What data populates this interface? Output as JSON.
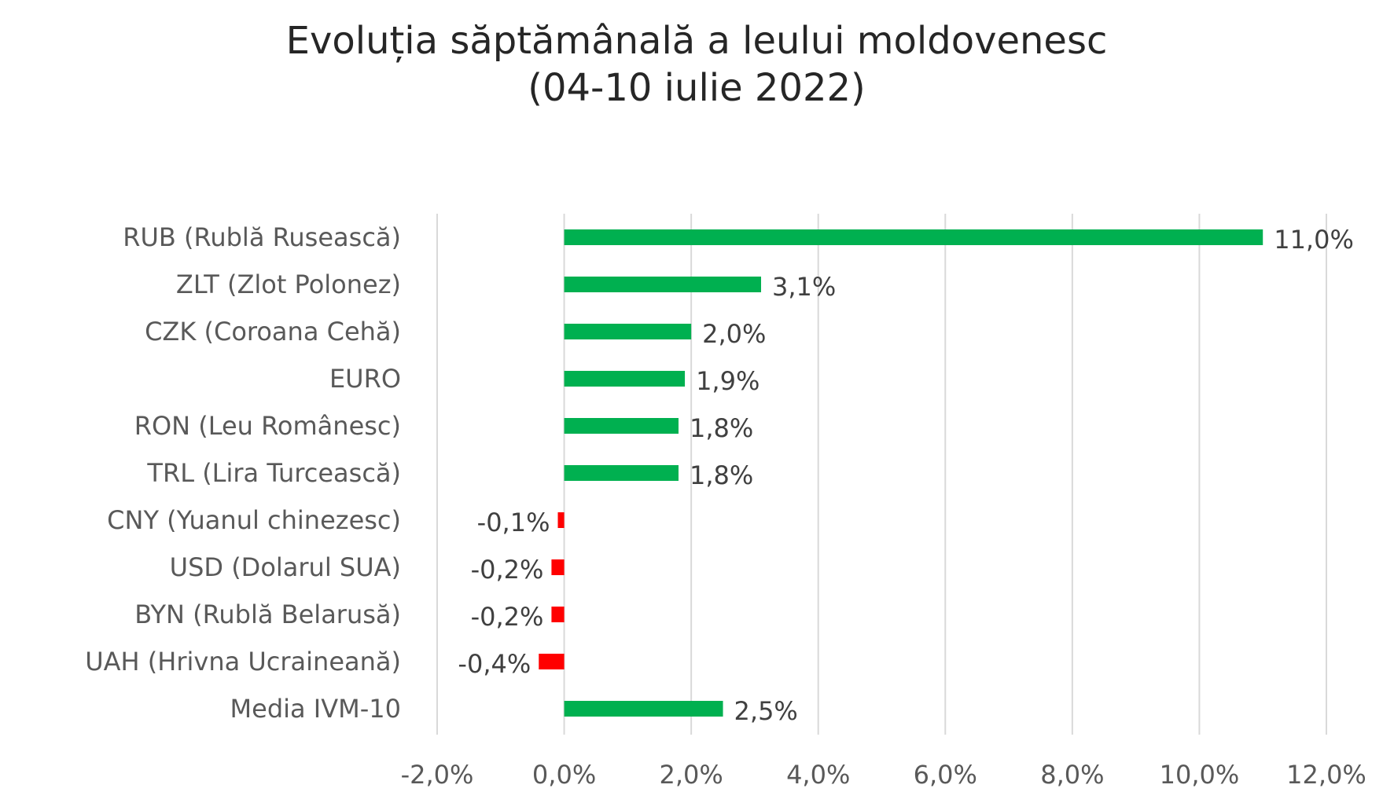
{
  "chart_data": {
    "type": "bar",
    "orientation": "horizontal",
    "title_lines": [
      "Evoluția săptămânală a leului moldovenesc",
      "(04-10 iulie 2022)"
    ],
    "categories": [
      "RUB (Rublă Rusească)",
      "ZLT (Zlot Polonez)",
      "CZK (Coroana Cehă)",
      "EURO",
      "RON (Leu Românesc)",
      "TRL (Lira Turcească)",
      "CNY (Yuanul chinezesc)",
      "USD (Dolarul SUA)",
      "BYN (Rublă Belarusă)",
      "UAH (Hrivna Ucraineană)",
      "Media IVM-10"
    ],
    "values": [
      11.0,
      3.1,
      2.0,
      1.9,
      1.8,
      1.8,
      -0.1,
      -0.2,
      -0.2,
      -0.4,
      2.5
    ],
    "value_labels": [
      "11,0%",
      "3,1%",
      "2,0%",
      "1,9%",
      "1,8%",
      "1,8%",
      "-0,1%",
      "-0,2%",
      "-0,2%",
      "-0,4%",
      "2,5%"
    ],
    "xlim": [
      -2.0,
      12.0
    ],
    "xticks": [
      -2,
      0,
      2,
      4,
      6,
      8,
      10,
      12
    ],
    "xtick_labels": [
      "-2,0%",
      "0,0%",
      "2,0%",
      "4,0%",
      "6,0%",
      "8,0%",
      "10,0%",
      "12,0%"
    ],
    "xlabel": "",
    "ylabel": "",
    "grid": "vertical",
    "legend": "none",
    "colors": {
      "positive": "#00b050",
      "negative": "#ff0000"
    }
  }
}
